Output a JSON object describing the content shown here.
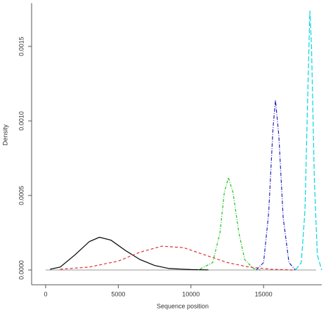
{
  "chart_data": {
    "type": "line",
    "xlabel": "Sequence position",
    "ylabel": "Density",
    "xlim": [
      -1000,
      19200
    ],
    "ylim": [
      -0.0001,
      0.00179
    ],
    "xticks": [
      0,
      5000,
      10000,
      15000
    ],
    "yticks": [
      {
        "value": 0,
        "label": "0.0000"
      },
      {
        "value": 0.0005,
        "label": "0.0005"
      },
      {
        "value": 0.001,
        "label": "0.0010"
      },
      {
        "value": 0.0015,
        "label": "0.0015"
      }
    ],
    "zero_line": true,
    "series": [
      {
        "color": "#000000",
        "linestyle": "solid",
        "x": [
          300,
          1000,
          2000,
          3000,
          3700,
          4500,
          5500,
          6500,
          7500,
          8500,
          10000,
          11200
        ],
        "values": [
          5e-06,
          2e-05,
          0.0001,
          0.00019,
          0.00022,
          0.0002,
          0.00013,
          7e-05,
          3e-05,
          1e-05,
          3e-06,
          1e-06
        ]
      },
      {
        "color": "#e03030",
        "linestyle": "dashed",
        "x": [
          1000,
          3000,
          5000,
          6500,
          8000,
          9500,
          11000,
          12500,
          14000,
          15500,
          17000
        ],
        "values": [
          5e-06,
          2e-05,
          6e-05,
          0.00012,
          0.00016,
          0.00015,
          0.0001,
          5e-05,
          2e-05,
          5e-06,
          0
        ]
      },
      {
        "color": "#22c022",
        "linestyle": "dotdash",
        "x": [
          10500,
          11500,
          12000,
          12300,
          12580,
          12900,
          13300,
          13700,
          14300,
          14800
        ],
        "values": [
          0,
          5e-05,
          0.00025,
          0.00052,
          0.00062,
          0.00052,
          0.00025,
          7e-05,
          1e-05,
          0
        ]
      },
      {
        "color": "#2020c0",
        "linestyle": "dashdot",
        "x": [
          14500,
          15000,
          15350,
          15650,
          15820,
          16050,
          16350,
          16750,
          17200
        ],
        "values": [
          0,
          5e-05,
          0.00038,
          0.00095,
          0.00114,
          0.0009,
          0.00035,
          5e-05,
          0
        ]
      },
      {
        "color": "#00d8e0",
        "linestyle": "longdash",
        "x": [
          17200,
          17600,
          17850,
          18050,
          18190,
          18300,
          18500,
          18700,
          19000
        ],
        "values": [
          0,
          5e-05,
          0.0004,
          0.0012,
          0.00174,
          0.0015,
          0.0006,
          0.0001,
          0
        ]
      }
    ]
  }
}
